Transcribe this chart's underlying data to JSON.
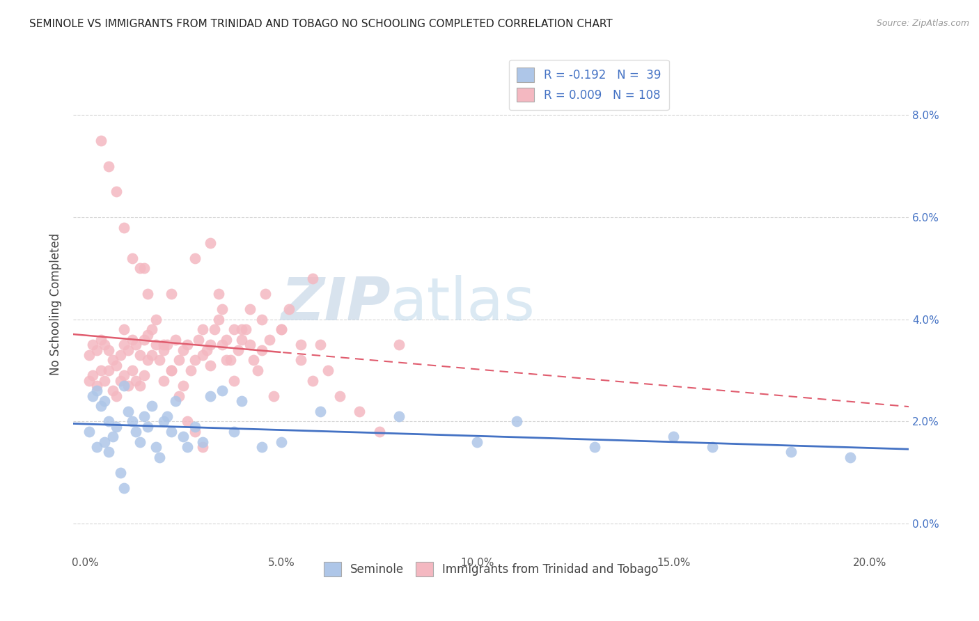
{
  "title": "SEMINOLE VS IMMIGRANTS FROM TRINIDAD AND TOBAGO NO SCHOOLING COMPLETED CORRELATION CHART",
  "source": "Source: ZipAtlas.com",
  "xlabel_tick_vals": [
    0.0,
    5.0,
    10.0,
    15.0,
    20.0
  ],
  "ylabel": "No Schooling Completed",
  "ylabel_tick_vals": [
    0.0,
    2.0,
    4.0,
    6.0,
    8.0
  ],
  "xlim": [
    -0.3,
    21.0
  ],
  "ylim": [
    -0.6,
    9.2
  ],
  "background_color": "#ffffff",
  "grid_color": "#cccccc",
  "seminole_color": "#aec6e8",
  "tt_color": "#f4b8c1",
  "seminole_line_color": "#4472c4",
  "tt_line_color": "#e05c6e",
  "seminole_x": [
    0.1,
    0.2,
    0.3,
    0.3,
    0.4,
    0.5,
    0.5,
    0.6,
    0.6,
    0.7,
    0.8,
    0.9,
    1.0,
    1.0,
    1.1,
    1.2,
    1.3,
    1.4,
    1.5,
    1.6,
    1.7,
    1.8,
    1.9,
    2.0,
    2.1,
    2.2,
    2.3,
    2.5,
    2.6,
    2.8,
    3.0,
    3.2,
    3.5,
    3.8,
    4.0,
    4.5,
    5.0,
    6.0,
    8.0,
    10.0,
    11.0,
    13.0,
    15.0,
    16.0,
    18.0,
    19.5
  ],
  "seminole_y": [
    1.8,
    2.5,
    2.6,
    1.5,
    2.3,
    2.4,
    1.6,
    2.0,
    1.4,
    1.7,
    1.9,
    1.0,
    2.7,
    0.7,
    2.2,
    2.0,
    1.8,
    1.6,
    2.1,
    1.9,
    2.3,
    1.5,
    1.3,
    2.0,
    2.1,
    1.8,
    2.4,
    1.7,
    1.5,
    1.9,
    1.6,
    2.5,
    2.6,
    1.8,
    2.4,
    1.5,
    1.6,
    2.2,
    2.1,
    1.6,
    2.0,
    1.5,
    1.7,
    1.5,
    1.4,
    1.3
  ],
  "tt_x": [
    0.1,
    0.1,
    0.2,
    0.2,
    0.3,
    0.3,
    0.4,
    0.4,
    0.5,
    0.5,
    0.6,
    0.6,
    0.7,
    0.7,
    0.8,
    0.8,
    0.9,
    0.9,
    1.0,
    1.0,
    1.0,
    1.1,
    1.1,
    1.2,
    1.2,
    1.3,
    1.3,
    1.4,
    1.4,
    1.5,
    1.5,
    1.6,
    1.6,
    1.7,
    1.7,
    1.8,
    1.9,
    2.0,
    2.0,
    2.1,
    2.2,
    2.3,
    2.4,
    2.5,
    2.5,
    2.6,
    2.7,
    2.8,
    2.9,
    3.0,
    3.0,
    3.1,
    3.2,
    3.3,
    3.4,
    3.5,
    3.5,
    3.6,
    3.7,
    3.8,
    3.9,
    4.0,
    4.1,
    4.2,
    4.3,
    4.5,
    4.5,
    4.7,
    5.0,
    5.2,
    5.5,
    5.8,
    1.5,
    2.2,
    2.8,
    3.2,
    0.4,
    0.6,
    0.8,
    1.0,
    1.2,
    1.4,
    1.6,
    1.8,
    2.0,
    2.2,
    2.4,
    2.6,
    2.8,
    3.0,
    3.2,
    3.4,
    3.6,
    3.8,
    4.0,
    4.2,
    4.4,
    4.6,
    4.8,
    5.0,
    5.5,
    5.8,
    6.0,
    6.2,
    6.5,
    7.0,
    7.5,
    8.0
  ],
  "tt_y": [
    2.8,
    3.3,
    3.5,
    2.9,
    3.4,
    2.7,
    3.6,
    3.0,
    3.5,
    2.8,
    3.4,
    3.0,
    3.2,
    2.6,
    3.1,
    2.5,
    3.3,
    2.8,
    3.5,
    2.9,
    3.8,
    3.4,
    2.7,
    3.6,
    3.0,
    3.5,
    2.8,
    3.3,
    2.7,
    3.6,
    2.9,
    3.7,
    3.2,
    3.8,
    3.3,
    3.5,
    3.2,
    3.4,
    2.8,
    3.5,
    3.0,
    3.6,
    3.2,
    3.4,
    2.7,
    3.5,
    3.0,
    3.2,
    3.6,
    3.3,
    3.8,
    3.4,
    3.1,
    3.8,
    4.0,
    3.5,
    4.2,
    3.6,
    3.2,
    3.8,
    3.4,
    3.6,
    3.8,
    3.5,
    3.2,
    3.4,
    4.0,
    3.6,
    3.8,
    4.2,
    3.5,
    4.8,
    5.0,
    4.5,
    5.2,
    5.5,
    7.5,
    7.0,
    6.5,
    5.8,
    5.2,
    5.0,
    4.5,
    4.0,
    3.5,
    3.0,
    2.5,
    2.0,
    1.8,
    1.5,
    3.5,
    4.5,
    3.2,
    2.8,
    3.8,
    4.2,
    3.0,
    4.5,
    2.5,
    3.8,
    3.2,
    2.8,
    3.5,
    3.0,
    2.5,
    2.2,
    1.8,
    3.5
  ]
}
